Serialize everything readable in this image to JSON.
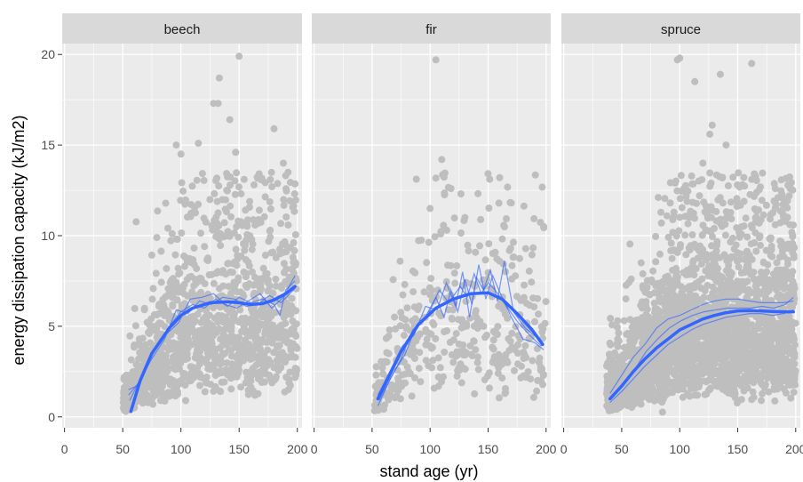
{
  "chart_data": {
    "type": "scatter",
    "xlabel": "stand age (yr)",
    "ylabel": "energy dissipation capacity (kJ/m2)",
    "xlim": [
      -2,
      204
    ],
    "ylim": [
      -0.6,
      20.6
    ],
    "x_ticks": [
      0,
      50,
      100,
      150,
      200
    ],
    "y_ticks": [
      0,
      5,
      10,
      15,
      20
    ],
    "grid": true,
    "colors": {
      "panel_background": "#ebebeb",
      "strip_background": "#d9d9d9",
      "grid_major": "#ffffff",
      "point": "#bebebe",
      "smooth": "#3366ff"
    },
    "panels": [
      {
        "name": "beech",
        "point_cloud": {
          "x_range": [
            50,
            200
          ],
          "count": 1300,
          "y_median_curve": [
            [
              55,
              1.0
            ],
            [
              70,
              2.5
            ],
            [
              90,
              4.0
            ],
            [
              110,
              5.0
            ],
            [
              130,
              5.3
            ],
            [
              160,
              5.3
            ],
            [
              200,
              5.5
            ]
          ],
          "y_max": 20
        },
        "outliers": [
          [
            150,
            19.9
          ],
          [
            133,
            18.7
          ],
          [
            128,
            17.3
          ],
          [
            132,
            17.3
          ],
          [
            96,
            15.0
          ],
          [
            100,
            14.5
          ],
          [
            115,
            15.1
          ],
          [
            142,
            16.4
          ],
          [
            147,
            14.6
          ],
          [
            180,
            15.9
          ],
          [
            188,
            14.0
          ],
          [
            192,
            13.5
          ]
        ],
        "smooth": [
          [
            57,
            0.3
          ],
          [
            65,
            2.0
          ],
          [
            75,
            3.5
          ],
          [
            90,
            4.9
          ],
          [
            100,
            5.6
          ],
          [
            110,
            6.0
          ],
          [
            125,
            6.3
          ],
          [
            140,
            6.35
          ],
          [
            150,
            6.3
          ],
          [
            160,
            6.2
          ],
          [
            170,
            6.25
          ],
          [
            180,
            6.45
          ],
          [
            190,
            6.8
          ],
          [
            198,
            7.2
          ]
        ],
        "thin_lines": [
          [
            [
              55,
              1.5
            ],
            [
              62,
              1.7
            ],
            [
              70,
              2.8
            ],
            [
              80,
              4.0
            ],
            [
              90,
              5.0
            ],
            [
              100,
              5.8
            ],
            [
              110,
              6.2
            ],
            [
              120,
              6.0
            ],
            [
              130,
              6.5
            ],
            [
              140,
              6.1
            ],
            [
              150,
              6.6
            ],
            [
              160,
              6.3
            ],
            [
              170,
              6.5
            ],
            [
              180,
              6.2
            ],
            [
              185,
              5.6
            ],
            [
              190,
              7.0
            ],
            [
              198,
              7.5
            ]
          ],
          [
            [
              56,
              0.9
            ],
            [
              66,
              2.2
            ],
            [
              76,
              3.6
            ],
            [
              88,
              4.6
            ],
            [
              98,
              5.2
            ],
            [
              108,
              6.5
            ],
            [
              118,
              6.6
            ],
            [
              128,
              6.8
            ],
            [
              138,
              6.2
            ],
            [
              148,
              6.0
            ],
            [
              158,
              6.4
            ],
            [
              168,
              6.8
            ],
            [
              178,
              6.0
            ],
            [
              188,
              6.6
            ],
            [
              198,
              7.8
            ]
          ],
          [
            [
              55,
              1.2
            ],
            [
              64,
              1.9
            ],
            [
              74,
              3.1
            ],
            [
              86,
              4.3
            ],
            [
              96,
              5.9
            ],
            [
              106,
              5.7
            ],
            [
              116,
              6.4
            ],
            [
              126,
              6.2
            ],
            [
              136,
              6.6
            ],
            [
              146,
              6.5
            ],
            [
              156,
              6.1
            ],
            [
              166,
              6.2
            ],
            [
              176,
              6.7
            ],
            [
              186,
              6.3
            ],
            [
              198,
              7.1
            ]
          ]
        ]
      },
      {
        "name": "fir",
        "point_cloud": {
          "x_range": [
            52,
            200
          ],
          "count": 420,
          "y_median_curve": [
            [
              55,
              1.0
            ],
            [
              70,
              2.8
            ],
            [
              90,
              4.4
            ],
            [
              110,
              5.0
            ],
            [
              130,
              5.4
            ],
            [
              150,
              5.7
            ],
            [
              170,
              5.0
            ],
            [
              200,
              4.0
            ]
          ],
          "y_max": 20
        },
        "outliers": [
          [
            105,
            19.7
          ],
          [
            110,
            14.2
          ],
          [
            118,
            12.6
          ],
          [
            160,
            13.2
          ],
          [
            130,
            11.0
          ],
          [
            100,
            11.5
          ],
          [
            170,
            11.8
          ]
        ],
        "smooth": [
          [
            55,
            1.0
          ],
          [
            65,
            2.3
          ],
          [
            75,
            3.6
          ],
          [
            90,
            5.1
          ],
          [
            105,
            6.0
          ],
          [
            120,
            6.5
          ],
          [
            135,
            6.8
          ],
          [
            150,
            6.85
          ],
          [
            162,
            6.5
          ],
          [
            175,
            5.7
          ],
          [
            188,
            4.8
          ],
          [
            197,
            4.0
          ]
        ],
        "thin_lines": [
          [
            [
              55,
              0.6
            ],
            [
              65,
              2.0
            ],
            [
              75,
              3.2
            ],
            [
              85,
              4.8
            ],
            [
              95,
              5.4
            ],
            [
              105,
              6.6
            ],
            [
              112,
              5.5
            ],
            [
              118,
              7.0
            ],
            [
              124,
              5.8
            ],
            [
              130,
              7.6
            ],
            [
              136,
              6.2
            ],
            [
              142,
              8.4
            ],
            [
              148,
              6.5
            ],
            [
              154,
              7.8
            ],
            [
              160,
              6.9
            ],
            [
              170,
              5.5
            ],
            [
              180,
              4.3
            ],
            [
              190,
              4.1
            ],
            [
              198,
              3.7
            ]
          ],
          [
            [
              55,
              1.2
            ],
            [
              66,
              2.6
            ],
            [
              76,
              3.9
            ],
            [
              86,
              4.5
            ],
            [
              96,
              6.1
            ],
            [
              106,
              5.9
            ],
            [
              114,
              7.4
            ],
            [
              122,
              6.1
            ],
            [
              128,
              8.0
            ],
            [
              134,
              5.5
            ],
            [
              140,
              7.7
            ],
            [
              146,
              7.0
            ],
            [
              152,
              8.1
            ],
            [
              158,
              6.4
            ],
            [
              164,
              8.6
            ],
            [
              172,
              5.8
            ],
            [
              182,
              4.9
            ],
            [
              192,
              4.4
            ],
            [
              198,
              4.0
            ]
          ],
          [
            [
              56,
              0.9
            ],
            [
              68,
              2.4
            ],
            [
              78,
              3.4
            ],
            [
              88,
              5.0
            ],
            [
              98,
              5.6
            ],
            [
              108,
              7.0
            ],
            [
              116,
              6.3
            ],
            [
              126,
              7.2
            ],
            [
              132,
              6.6
            ],
            [
              138,
              7.9
            ],
            [
              144,
              6.8
            ],
            [
              150,
              7.4
            ],
            [
              156,
              7.0
            ],
            [
              166,
              6.1
            ],
            [
              176,
              5.2
            ],
            [
              186,
              4.5
            ],
            [
              196,
              3.9
            ]
          ]
        ]
      },
      {
        "name": "spruce",
        "point_cloud": {
          "x_range": [
            37,
            200
          ],
          "count": 2600,
          "y_median_curve": [
            [
              40,
              1.2
            ],
            [
              55,
              2.0
            ],
            [
              70,
              3.0
            ],
            [
              90,
              3.9
            ],
            [
              110,
              4.4
            ],
            [
              130,
              4.7
            ],
            [
              160,
              4.8
            ],
            [
              200,
              4.8
            ]
          ],
          "y_max": 20
        },
        "outliers": [
          [
            98,
            19.7
          ],
          [
            100,
            19.8
          ],
          [
            113,
            18.5
          ],
          [
            135,
            18.9
          ],
          [
            162,
            19.5
          ],
          [
            128,
            16.1
          ],
          [
            126,
            15.6
          ],
          [
            140,
            15.0
          ],
          [
            120,
            14.0
          ]
        ],
        "smooth": [
          [
            40,
            1.0
          ],
          [
            50,
            1.7
          ],
          [
            60,
            2.5
          ],
          [
            70,
            3.2
          ],
          [
            80,
            3.8
          ],
          [
            90,
            4.3
          ],
          [
            100,
            4.8
          ],
          [
            110,
            5.1
          ],
          [
            120,
            5.4
          ],
          [
            130,
            5.6
          ],
          [
            140,
            5.75
          ],
          [
            150,
            5.85
          ],
          [
            160,
            5.87
          ],
          [
            170,
            5.85
          ],
          [
            180,
            5.82
          ],
          [
            190,
            5.8
          ],
          [
            198,
            5.8
          ]
        ],
        "thin_lines": [
          [
            [
              40,
              1.3
            ],
            [
              50,
              2.3
            ],
            [
              60,
              3.3
            ],
            [
              70,
              4.0
            ],
            [
              80,
              4.9
            ],
            [
              90,
              5.4
            ],
            [
              100,
              5.6
            ],
            [
              110,
              5.9
            ],
            [
              120,
              6.2
            ],
            [
              130,
              6.4
            ],
            [
              140,
              6.5
            ],
            [
              150,
              6.5
            ],
            [
              160,
              6.4
            ],
            [
              170,
              6.3
            ],
            [
              180,
              6.3
            ],
            [
              190,
              6.3
            ],
            [
              198,
              6.4
            ]
          ],
          [
            [
              40,
              0.8
            ],
            [
              50,
              1.4
            ],
            [
              60,
              2.1
            ],
            [
              70,
              2.8
            ],
            [
              80,
              3.4
            ],
            [
              90,
              4.0
            ],
            [
              100,
              4.4
            ],
            [
              110,
              4.8
            ],
            [
              120,
              5.1
            ],
            [
              130,
              5.3
            ],
            [
              140,
              5.5
            ],
            [
              150,
              5.6
            ],
            [
              160,
              5.7
            ],
            [
              170,
              5.7
            ],
            [
              180,
              5.6
            ],
            [
              190,
              5.7
            ],
            [
              198,
              5.9
            ]
          ],
          [
            [
              41,
              1.1
            ],
            [
              51,
              1.8
            ],
            [
              61,
              2.6
            ],
            [
              71,
              3.6
            ],
            [
              81,
              4.3
            ],
            [
              91,
              4.9
            ],
            [
              101,
              5.3
            ],
            [
              111,
              5.6
            ],
            [
              121,
              5.8
            ],
            [
              131,
              5.9
            ],
            [
              141,
              6.0
            ],
            [
              151,
              6.0
            ],
            [
              161,
              6.0
            ],
            [
              171,
              6.1
            ],
            [
              181,
              6.0
            ],
            [
              191,
              6.2
            ],
            [
              198,
              6.6
            ]
          ]
        ]
      }
    ]
  }
}
